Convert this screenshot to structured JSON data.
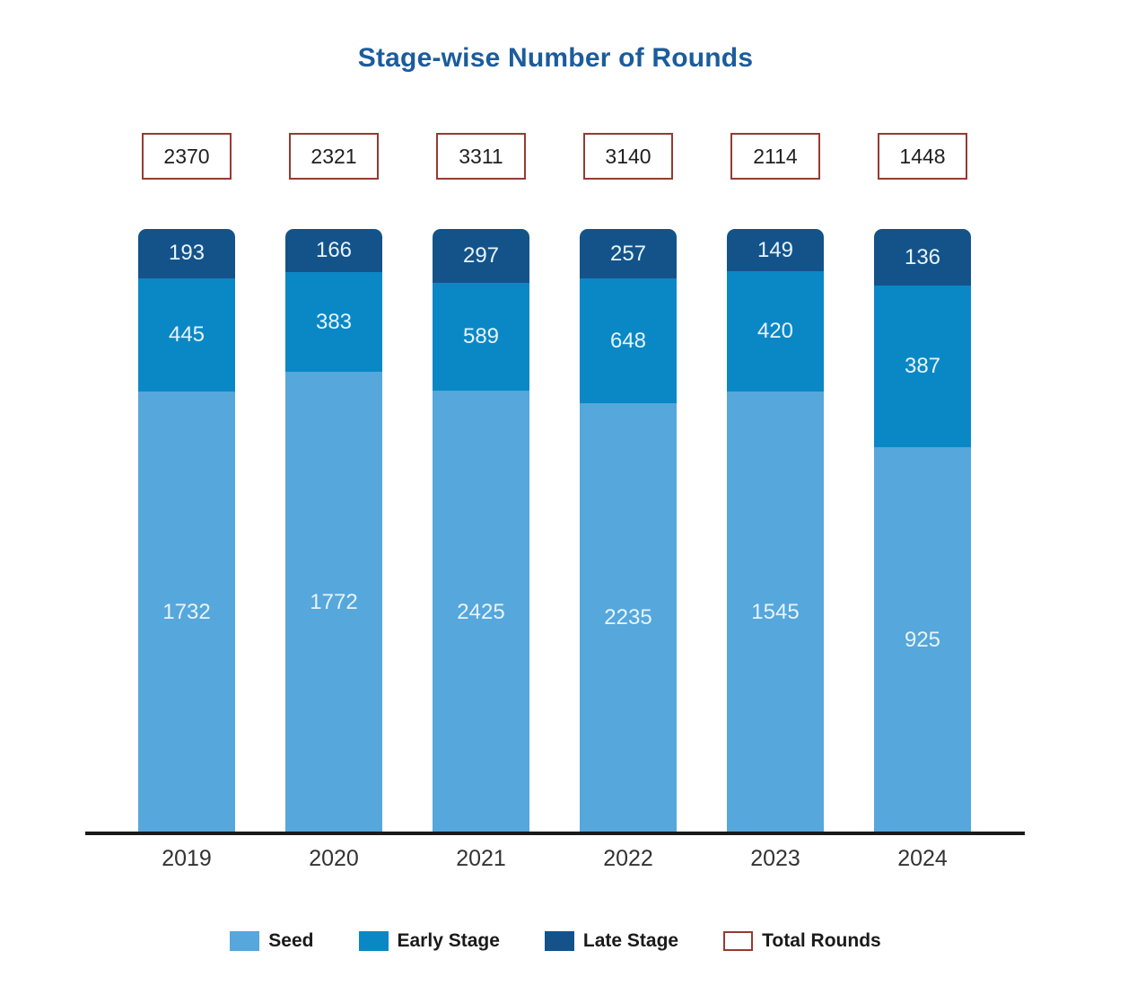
{
  "title": "Stage-wise Number of Rounds",
  "chart_data": {
    "type": "bar",
    "variant": "stacked-proportional-columns",
    "title": "Stage-wise Number of Rounds",
    "categories": [
      "2019",
      "2020",
      "2021",
      "2022",
      "2023",
      "2024"
    ],
    "totals": [
      2370,
      2321,
      3311,
      3140,
      2114,
      1448
    ],
    "series": [
      {
        "name": "Seed",
        "color": "#56A7DB",
        "values": [
          1732,
          1772,
          2425,
          2235,
          1545,
          925
        ]
      },
      {
        "name": "Early Stage",
        "color": "#0A88C6",
        "values": [
          445,
          383,
          589,
          648,
          420,
          387
        ]
      },
      {
        "name": "Late Stage",
        "color": "#14538A",
        "values": [
          193,
          166,
          297,
          257,
          149,
          136
        ]
      }
    ],
    "legend": [
      {
        "label": "Seed",
        "swatch_color": "#56A7DB",
        "swatch_border": ""
      },
      {
        "label": "Early Stage",
        "swatch_color": "#0A88C6",
        "swatch_border": ""
      },
      {
        "label": "Late Stage",
        "swatch_color": "#14538A",
        "swatch_border": ""
      },
      {
        "label": "Total Rounds",
        "swatch_color": "#FFFFFF",
        "swatch_border": "#943B31"
      }
    ],
    "legend_position": "bottom",
    "grid": false,
    "xlabel": "",
    "ylabel": ""
  },
  "colors": {
    "background": "#FFFFFF",
    "title": "#1C5C9C",
    "axis": "#1A1A1A",
    "total_box_border": "#943B31",
    "total_box_text": "#1F1F1F",
    "bar_label": "#E8F4FC",
    "year_label": "#333333",
    "legend_text": "#1A1A1A"
  }
}
